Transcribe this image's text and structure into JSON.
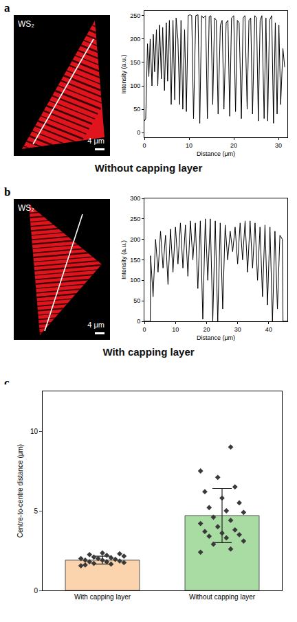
{
  "chart_data": [
    {
      "type": "line",
      "panel_label": "a",
      "subtitle": "Without capping layer",
      "image_texts": [
        "WS₂",
        "4 μm"
      ],
      "xlabel": "Distance (μm)",
      "ylabel": "Intensity (a.u.)",
      "x": [
        0,
        0.3,
        0.7,
        1.0,
        1.3,
        1.7,
        2.0,
        2.3,
        2.7,
        3.0,
        3.4,
        3.8,
        4.1,
        4.5,
        4.9,
        5.2,
        5.6,
        6.0,
        6.4,
        6.8,
        7.1,
        7.5,
        7.9,
        8.2,
        8.6,
        9.0,
        9.4,
        9.8,
        10.2,
        10.6,
        11.0,
        11.5,
        12.0,
        12.4,
        12.8,
        13.2,
        13.7,
        14.1,
        14.5,
        14.9,
        15.3,
        15.7,
        16.1,
        16.5,
        17.0,
        17.4,
        17.8,
        18.3,
        18.7,
        19.1,
        19.5,
        20.0,
        20.4,
        20.8,
        21.2,
        21.7,
        22.1,
        22.5,
        23.0,
        23.4,
        23.8,
        24.2,
        24.7,
        25.1,
        25.5,
        25.9,
        26.3,
        26.8,
        27.2,
        27.6,
        28.0,
        28.5,
        28.9,
        29.3,
        29.7,
        30.1,
        30.5,
        31.0,
        31.4
      ],
      "values": [
        25,
        30,
        190,
        120,
        200,
        100,
        210,
        130,
        220,
        100,
        230,
        115,
        225,
        90,
        235,
        110,
        240,
        60,
        240,
        70,
        245,
        200,
        60,
        240,
        50,
        220,
        45,
        250,
        252,
        250,
        30,
        250,
        252,
        20,
        250,
        245,
        250,
        30,
        248,
        250,
        60,
        245,
        240,
        40,
        230,
        240,
        50,
        235,
        240,
        35,
        245,
        250,
        45,
        240,
        235,
        30,
        245,
        250,
        50,
        240,
        245,
        40,
        250,
        245,
        25,
        240,
        250,
        30,
        245,
        25,
        240,
        250,
        20,
        235,
        40,
        230,
        60,
        180,
        140
      ],
      "color": "#000000",
      "xlim": [
        0,
        32
      ],
      "xticks": [
        0,
        10,
        20,
        30
      ],
      "ylim": [
        -10,
        260
      ],
      "yticks": [
        0,
        50,
        100,
        150,
        200,
        250
      ]
    },
    {
      "type": "line",
      "panel_label": "b",
      "subtitle": "With capping layer",
      "image_texts": [
        "WS₂",
        "4 μm"
      ],
      "xlabel": "Distance (μm)",
      "ylabel": "Intensity (a.u.)",
      "x": [
        0,
        1.9,
        2.0,
        2.8,
        3.6,
        4.4,
        5.2,
        6.0,
        6.8,
        7.6,
        8.4,
        9.2,
        10.0,
        10.8,
        11.6,
        12.4,
        13.2,
        14.0,
        14.8,
        15.6,
        16.4,
        17.2,
        18.0,
        18.8,
        19.6,
        20.4,
        21.2,
        22.0,
        22.8,
        23.6,
        24.4,
        25.2,
        26.0,
        26.8,
        27.6,
        28.4,
        29.2,
        30.0,
        30.8,
        31.6,
        32.4,
        33.2,
        34.0,
        34.8,
        35.6,
        36.4,
        37.2,
        38.0,
        38.8,
        39.6,
        40.4,
        41.2,
        42.0,
        42.8,
        43.6,
        44.4,
        44.6,
        46
      ],
      "values": [
        0,
        0,
        160,
        60,
        200,
        120,
        220,
        130,
        210,
        90,
        225,
        120,
        230,
        140,
        240,
        130,
        235,
        110,
        245,
        150,
        240,
        80,
        245,
        5,
        250,
        100,
        250,
        0,
        245,
        0,
        240,
        30,
        235,
        150,
        220,
        170,
        230,
        140,
        240,
        150,
        245,
        120,
        245,
        130,
        240,
        100,
        230,
        60,
        235,
        40,
        230,
        0,
        220,
        30,
        210,
        200,
        0,
        0
      ],
      "color": "#000000",
      "xlim": [
        0,
        46
      ],
      "xticks": [
        0,
        10,
        20,
        30,
        40
      ],
      "ylim": [
        0,
        300
      ],
      "yticks": [
        0,
        50,
        100,
        150,
        200,
        250,
        300
      ]
    },
    {
      "type": "bar",
      "panel_label": "c",
      "ylabel": "Centre-to-centre distance (μm)",
      "categories": [
        "With capping layer",
        "Without capping layer"
      ],
      "values": [
        1.9,
        4.7
      ],
      "errors": [
        0.25,
        1.7
      ],
      "colors": [
        "#fbd3ac",
        "#a9dca3"
      ],
      "points": [
        [
          1.55,
          1.65,
          1.7,
          1.75,
          1.8,
          1.8,
          1.85,
          1.9,
          1.9,
          1.95,
          2.0,
          2.0,
          2.05,
          2.1,
          2.15,
          2.2,
          2.25,
          2.3,
          2.35,
          1.6
        ],
        [
          2.4,
          2.6,
          2.9,
          3.1,
          3.3,
          3.4,
          3.5,
          3.6,
          3.7,
          3.8,
          4.0,
          4.2,
          4.4,
          4.6,
          4.9,
          5.0,
          5.2,
          5.5,
          5.8,
          6.2,
          6.5,
          7.1,
          7.5,
          9.0
        ]
      ],
      "marker": "diamond",
      "ylim": [
        0,
        12.5
      ],
      "yticks": [
        0,
        5,
        10
      ]
    }
  ]
}
